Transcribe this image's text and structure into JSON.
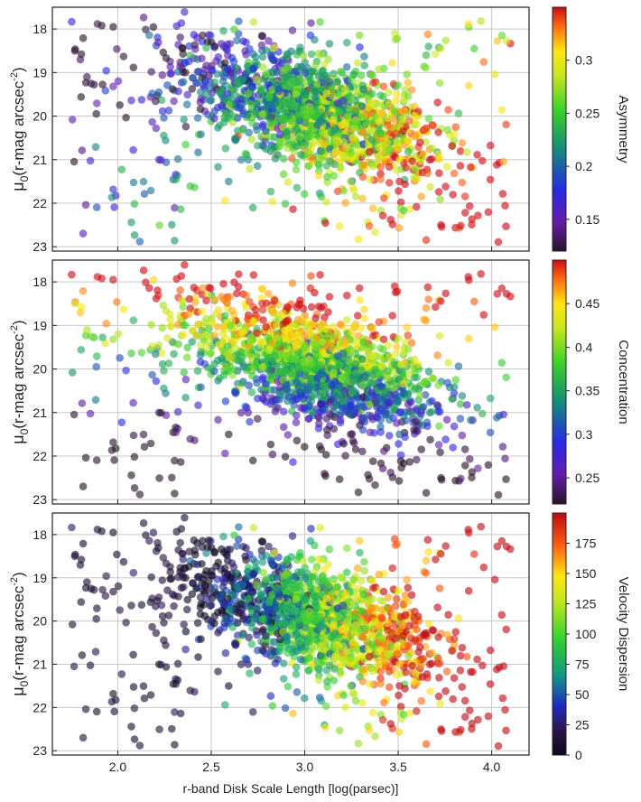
{
  "figure": {
    "xlabel": "r-band Disk Scale Length [log(parsec)]",
    "ylabel_main": "μ",
    "ylabel_sub": "0",
    "ylabel_rest": "(r-mag arcsec",
    "ylabel_exp": "-2",
    "ylabel_close": ")"
  },
  "chart_data": [
    {
      "type": "scatter",
      "title": "",
      "xlabel": "r-band Disk Scale Length [log(parsec)]",
      "ylabel": "μ0 (r-mag arcsec^-2)",
      "xlim": [
        1.65,
        4.2
      ],
      "ylim": [
        23.1,
        17.5
      ],
      "x_ticks": [
        "2.0",
        "2.5",
        "3.0",
        "3.5",
        "4.0"
      ],
      "y_ticks": [
        "18",
        "19",
        "20",
        "21",
        "22",
        "23"
      ],
      "color_by": "Asymmetry",
      "colorbar": {
        "label": "Asymmetry",
        "min": 0.12,
        "max": 0.35,
        "ticks": [
          "0.15",
          "0.2",
          "0.25",
          "0.3"
        ]
      },
      "trend": "higher asymmetry toward larger scale length and fainter surface brightness",
      "grid": true
    },
    {
      "type": "scatter",
      "title": "",
      "xlabel": "r-band Disk Scale Length [log(parsec)]",
      "ylabel": "μ0 (r-mag arcsec^-2)",
      "xlim": [
        1.65,
        4.2
      ],
      "ylim": [
        23.1,
        17.5
      ],
      "x_ticks": [
        "2.0",
        "2.5",
        "3.0",
        "3.5",
        "4.0"
      ],
      "y_ticks": [
        "18",
        "19",
        "20",
        "21",
        "22",
        "23"
      ],
      "color_by": "Concentration",
      "colorbar": {
        "label": "Concentration",
        "min": 0.22,
        "max": 0.5,
        "ticks": [
          "0.25",
          "0.3",
          "0.35",
          "0.4",
          "0.45"
        ]
      },
      "trend": "high concentration along the bright upper edge, low concentration toward the faint large-scale-length edge",
      "grid": true
    },
    {
      "type": "scatter",
      "title": "",
      "xlabel": "r-band Disk Scale Length [log(parsec)]",
      "ylabel": "μ0 (r-mag arcsec^-2)",
      "xlim": [
        1.65,
        4.2
      ],
      "ylim": [
        23.1,
        17.5
      ],
      "x_ticks": [
        "2.0",
        "2.5",
        "3.0",
        "3.5",
        "4.0"
      ],
      "y_ticks": [
        "18",
        "19",
        "20",
        "21",
        "22",
        "23"
      ],
      "color_by": "Velocity Dispersion",
      "colorbar": {
        "label": "Velocity Dispersion",
        "min": 0,
        "max": 200,
        "ticks": [
          "0",
          "25",
          "50",
          "75",
          "100",
          "125",
          "150",
          "175"
        ]
      },
      "trend": "velocity dispersion rises from near 0 at small scale lengths to above 175 at large scale lengths",
      "grid": true
    }
  ]
}
